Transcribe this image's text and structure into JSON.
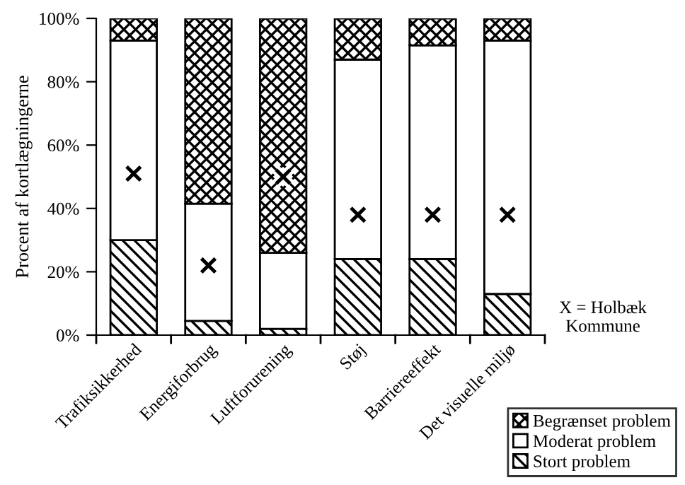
{
  "chart_data": {
    "type": "bar",
    "stacked": true,
    "ylabel": "Procent af kortlægningerne",
    "categories": [
      "Trafiksikkerhed",
      "Energiforbrug",
      "Luftforurening",
      "Støj",
      "Barriereeffekt",
      "Det visuelle miljø"
    ],
    "series": [
      {
        "name": "Stort problem",
        "color": "#000000",
        "values": [
          30,
          4.5,
          2,
          24,
          24,
          13
        ]
      },
      {
        "name": "Moderat problem",
        "color": "#ffffff",
        "values": [
          63,
          37,
          24,
          63,
          67.5,
          80
        ]
      },
      {
        "name": "Begrænset problem",
        "color": "#000000",
        "values": [
          7,
          58.5,
          74,
          13,
          8.5,
          7
        ]
      },
      {
        "type": "scatter",
        "marker": "cross",
        "color": "#000000",
        "x": [
          "Trafiksikkerhed",
          "Energiforbrug",
          "Luftforurening",
          "Støj",
          "Barriereeffekt",
          "Det visuelle miljø"
        ],
        "values": [
          51,
          22,
          50,
          38,
          38,
          38
        ]
      }
    ],
    "ylim": [
      0,
      100
    ],
    "yticks": [
      {
        "value": 0,
        "label": "0%"
      },
      {
        "value": 20,
        "label": "20%"
      },
      {
        "value": 40,
        "label": "40%"
      },
      {
        "value": 60,
        "label": "60%"
      },
      {
        "value": 80,
        "label": "80%"
      },
      {
        "value": 100,
        "label": "100%"
      }
    ],
    "grid": false,
    "legend": "bottom right",
    "annotations": [
      "X = Holbæk\nKommune"
    ]
  }
}
